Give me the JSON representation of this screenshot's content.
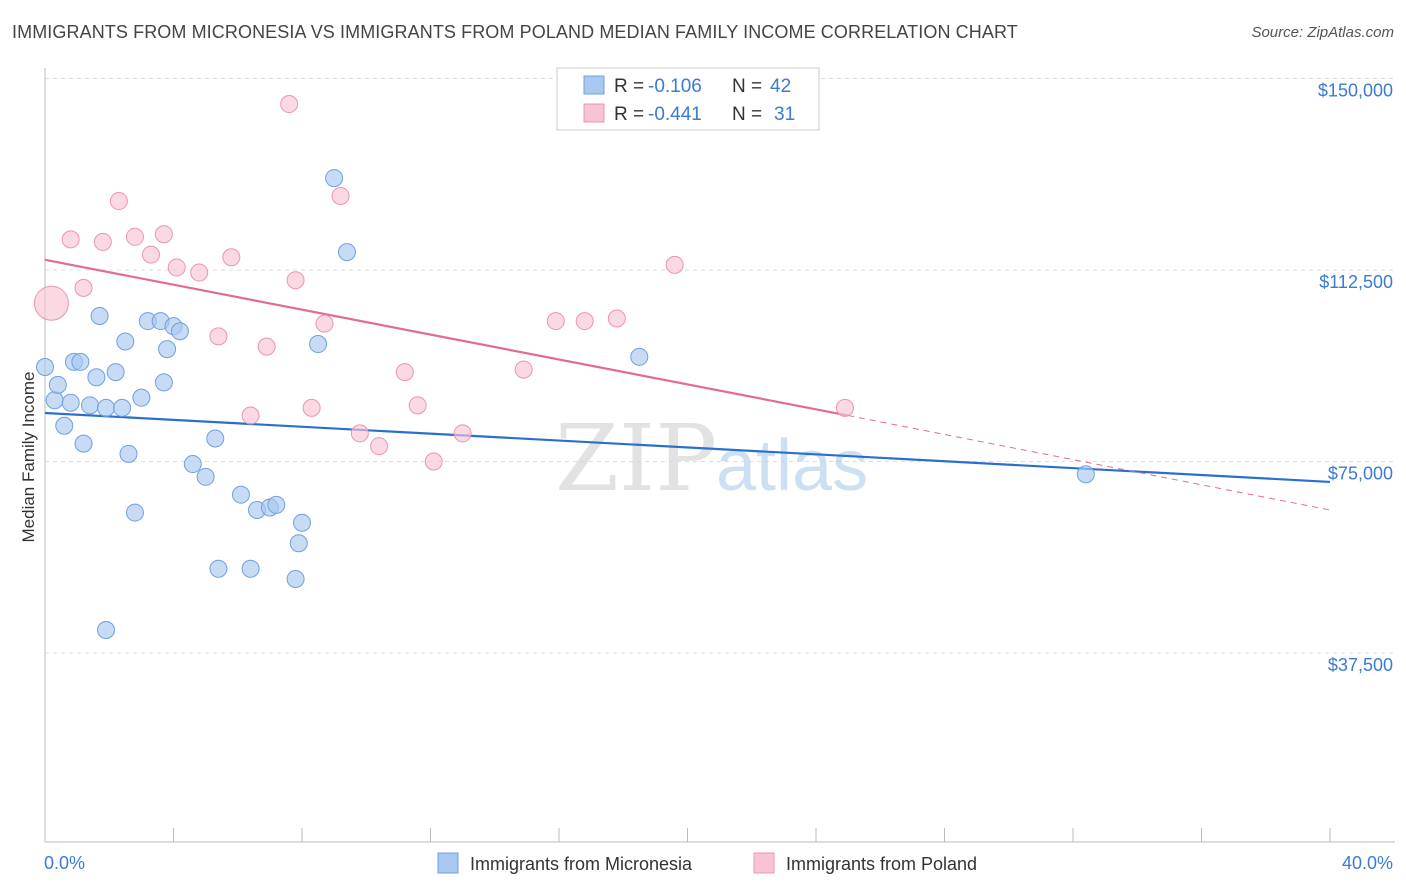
{
  "chart_data": {
    "type": "scatter",
    "title": "IMMIGRANTS FROM MICRONESIA VS IMMIGRANTS FROM POLAND MEDIAN FAMILY INCOME CORRELATION CHART",
    "source": "Source: ZipAtlas.com",
    "ylabel": "Median Family Income",
    "xlim": [
      0,
      40
    ],
    "ylim": [
      0,
      155000
    ],
    "x_tick_labels": [
      "0.0%",
      "40.0%"
    ],
    "y_ticks": [
      37500,
      75000,
      112500,
      150000
    ],
    "y_tick_labels": [
      "$37,500",
      "$75,000",
      "$112,500",
      "$150,000"
    ],
    "grid": true,
    "watermark": "ZIPatlas",
    "legend_top": [
      {
        "r_label": "R = ",
        "r": "-0.106",
        "n_label": "N = ",
        "n": "42"
      },
      {
        "r_label": "R = ",
        "r": "-0.441",
        "n_label": "N = ",
        "n": "31"
      }
    ],
    "series": [
      {
        "name": "Immigrants from Micronesia",
        "color": "#a9c8f0",
        "stroke": "#6fa0e0",
        "line_color": "#2a6fd0",
        "trend": {
          "x0": 0,
          "y0": 84500,
          "x1": 40,
          "y1": 71000
        },
        "points": [
          [
            0.0,
            93500
          ],
          [
            0.3,
            87000
          ],
          [
            0.4,
            90000
          ],
          [
            0.6,
            82000
          ],
          [
            0.8,
            86500
          ],
          [
            0.9,
            94500
          ],
          [
            1.1,
            94500
          ],
          [
            1.2,
            78500
          ],
          [
            1.4,
            86000
          ],
          [
            1.6,
            91500
          ],
          [
            1.7,
            103500
          ],
          [
            1.9,
            42000
          ],
          [
            1.9,
            85500
          ],
          [
            2.2,
            92500
          ],
          [
            2.4,
            85500
          ],
          [
            2.5,
            98500
          ],
          [
            2.6,
            76500
          ],
          [
            2.8,
            65000
          ],
          [
            3.0,
            87500
          ],
          [
            3.2,
            102500
          ],
          [
            3.6,
            102500
          ],
          [
            3.7,
            90500
          ],
          [
            3.8,
            97000
          ],
          [
            4.0,
            101500
          ],
          [
            4.2,
            100500
          ],
          [
            4.6,
            74500
          ],
          [
            5.0,
            72000
          ],
          [
            5.3,
            79500
          ],
          [
            5.4,
            54000
          ],
          [
            6.1,
            68500
          ],
          [
            6.4,
            54000
          ],
          [
            6.6,
            65500
          ],
          [
            7.0,
            66000
          ],
          [
            7.2,
            66500
          ],
          [
            7.8,
            52000
          ],
          [
            7.9,
            59000
          ],
          [
            8.0,
            63000
          ],
          [
            8.5,
            98000
          ],
          [
            9.0,
            130500
          ],
          [
            9.4,
            116000
          ],
          [
            18.5,
            95500
          ],
          [
            32.4,
            72500
          ]
        ]
      },
      {
        "name": "Immigrants from Poland",
        "color": "#f8c4d4",
        "stroke": "#ec94b0",
        "line_color": "#e26b93",
        "trend": {
          "x0": 0,
          "y0": 114500,
          "x1": 25,
          "y1": 84000
        },
        "trend_dash": {
          "x0": 25,
          "y0": 84000,
          "x1": 40,
          "y1": 65500
        },
        "points": [
          [
            0.2,
            106000
          ],
          [
            0.8,
            118500
          ],
          [
            1.2,
            109000
          ],
          [
            1.8,
            118000
          ],
          [
            2.3,
            126000
          ],
          [
            2.8,
            119000
          ],
          [
            3.3,
            115500
          ],
          [
            3.7,
            119500
          ],
          [
            4.1,
            113000
          ],
          [
            4.8,
            112000
          ],
          [
            5.4,
            99500
          ],
          [
            5.8,
            115000
          ],
          [
            6.4,
            84000
          ],
          [
            6.9,
            97500
          ],
          [
            7.6,
            145000
          ],
          [
            7.8,
            110500
          ],
          [
            8.3,
            85500
          ],
          [
            8.7,
            102000
          ],
          [
            9.2,
            127000
          ],
          [
            9.8,
            80500
          ],
          [
            10.4,
            78000
          ],
          [
            11.2,
            92500
          ],
          [
            11.6,
            86000
          ],
          [
            12.1,
            75000
          ],
          [
            13.0,
            80500
          ],
          [
            14.9,
            93000
          ],
          [
            15.9,
            102500
          ],
          [
            16.8,
            102500
          ],
          [
            17.8,
            103000
          ],
          [
            19.6,
            113500
          ],
          [
            24.9,
            85500
          ]
        ]
      }
    ]
  }
}
